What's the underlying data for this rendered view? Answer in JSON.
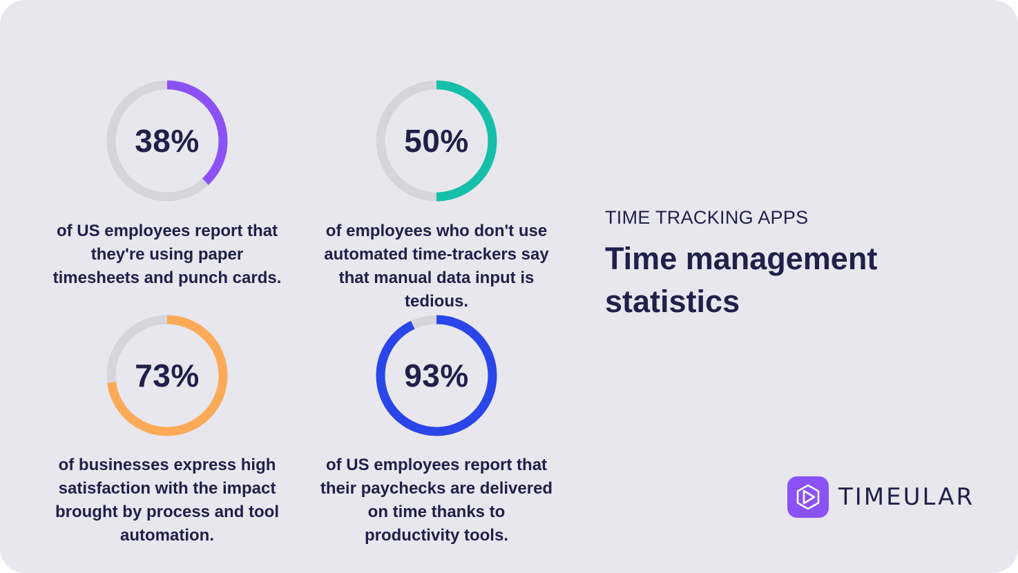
{
  "header": {
    "eyebrow": "TIME TRACKING APPS",
    "title": "Time management statistics"
  },
  "logo": {
    "text": "TIMEULAR",
    "icon": "play-hexagon-icon",
    "color": "#8a52f5"
  },
  "chart_data": {
    "type": "pie",
    "track_color": "#d6d5db",
    "items": [
      {
        "value": 38,
        "label": "38%",
        "color": "#8a52f5",
        "description": "of US employees report that they're using paper timesheets and punch cards."
      },
      {
        "value": 50,
        "label": "50%",
        "color": "#15bfa8",
        "description": "of employees who don't use automated time-trackers say that manual data input is tedious."
      },
      {
        "value": 73,
        "label": "73%",
        "color": "#fcaa58",
        "description": "of businesses express high satisfaction with the impact brought by process and tool automation."
      },
      {
        "value": 93,
        "label": "93%",
        "color": "#2a45e8",
        "description": "of US employees report that their paychecks are delivered on time thanks to productivity tools."
      }
    ]
  }
}
